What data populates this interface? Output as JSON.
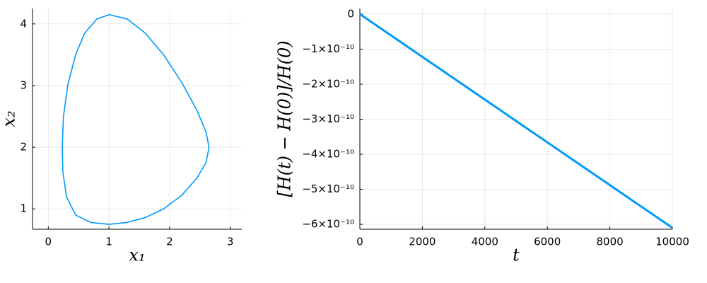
{
  "chart_data": [
    {
      "type": "line",
      "xlabel": "x₁",
      "ylabel": "x₂",
      "x": [
        1.0,
        1.3,
        1.6,
        1.9,
        2.2,
        2.45,
        2.6,
        2.65,
        2.6,
        2.45,
        2.2,
        1.9,
        1.6,
        1.3,
        1.0,
        0.7,
        0.45,
        0.3,
        0.24,
        0.23,
        0.25,
        0.32,
        0.45,
        0.6,
        0.8,
        1.0
      ],
      "values": [
        4.15,
        4.08,
        3.85,
        3.5,
        3.05,
        2.6,
        2.25,
        2.0,
        1.75,
        1.5,
        1.22,
        1.0,
        0.86,
        0.78,
        0.75,
        0.78,
        0.9,
        1.2,
        1.6,
        2.0,
        2.5,
        3.0,
        3.5,
        3.85,
        4.08,
        4.15
      ],
      "color": "#009af9",
      "xlim": [
        -0.26,
        3.19
      ],
      "ylim": [
        0.67,
        4.25
      ],
      "xticks": [
        0,
        1,
        2,
        3
      ],
      "yticks": [
        1,
        2,
        3,
        4
      ],
      "grid": true
    },
    {
      "type": "line",
      "xlabel": "t",
      "ylabel": "[H(t) − H(0)]/H(0)",
      "x": [
        0,
        1000,
        2000,
        3000,
        4000,
        5000,
        6000,
        7000,
        8000,
        9000,
        10000
      ],
      "values": [
        0,
        -6.1e-11,
        -1.22e-10,
        -1.83e-10,
        -2.44e-10,
        -3.05e-10,
        -3.66e-10,
        -4.27e-10,
        -4.88e-10,
        -5.49e-10,
        -6.1e-10
      ],
      "color": "#009af9",
      "xlim": [
        0,
        10000
      ],
      "ylim": [
        -6.14e-10,
        1.6e-11
      ],
      "xticks": [
        0,
        2000,
        4000,
        6000,
        8000,
        10000
      ],
      "yticks": [
        0,
        {
          "value": -1e-10,
          "label": "−1×10⁻¹⁰"
        },
        {
          "value": -2e-10,
          "label": "−2×10⁻¹⁰"
        },
        {
          "value": -3e-10,
          "label": "−3×10⁻¹⁰"
        },
        {
          "value": -4e-10,
          "label": "−4×10⁻¹⁰"
        },
        {
          "value": -5e-10,
          "label": "−5×10⁻¹⁰"
        },
        {
          "value": -6e-10,
          "label": "−6×10⁻¹⁰"
        }
      ],
      "grid": true
    }
  ]
}
